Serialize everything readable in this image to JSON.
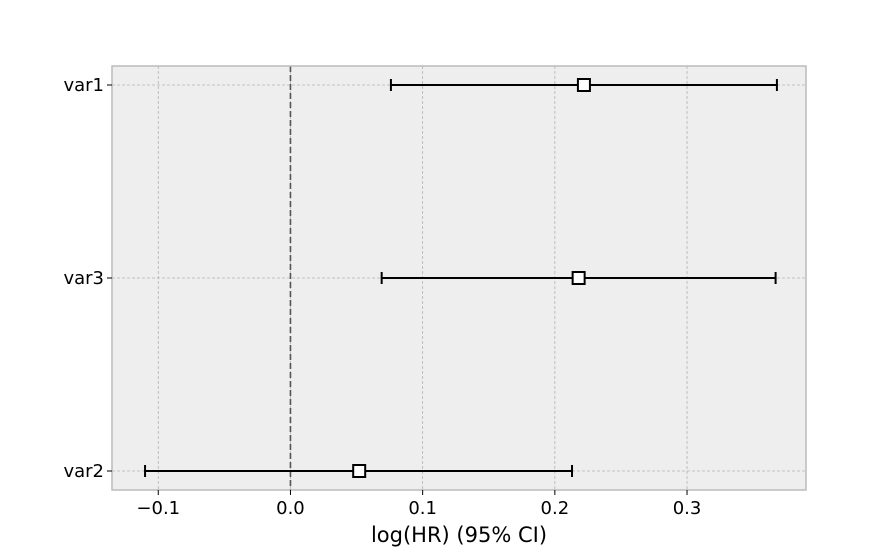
{
  "chart_data": {
    "type": "forest",
    "xlabel": "log(HR) (95% CI)",
    "ylabel": "",
    "title": "",
    "xlim": [
      -0.135,
      0.39
    ],
    "xticks": [
      {
        "value": -0.1,
        "label": "−0.1"
      },
      {
        "value": 0.0,
        "label": "0.0"
      },
      {
        "value": 0.1,
        "label": "0.1"
      },
      {
        "value": 0.2,
        "label": "0.2"
      },
      {
        "value": 0.3,
        "label": "0.3"
      }
    ],
    "reference_line": 0.0,
    "grid": true,
    "rows": [
      {
        "name": "var1",
        "estimate": 0.222,
        "lower": 0.076,
        "upper": 0.368
      },
      {
        "name": "var3",
        "estimate": 0.218,
        "lower": 0.069,
        "upper": 0.367
      },
      {
        "name": "var2",
        "estimate": 0.052,
        "lower": -0.11,
        "upper": 0.213
      }
    ],
    "colors": {
      "background": "#eeeeee",
      "frame": "#bcbcbc",
      "grid": "#b2b2b2",
      "marker_face": "#ffffff",
      "marker_edge": "#000000",
      "line": "#000000",
      "reference": "#555555"
    }
  }
}
